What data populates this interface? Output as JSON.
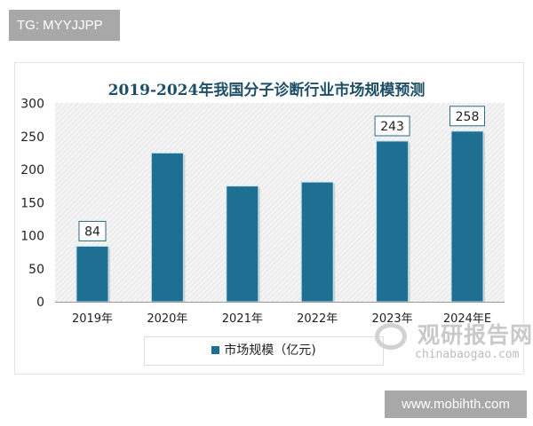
{
  "tag": "TG: MYYJJPP",
  "url_badge": "www.mobihth.com",
  "watermark": {
    "cn": "观研报告网",
    "en": "chinabaogao.com"
  },
  "chart_data": {
    "type": "bar",
    "title": "2019-2024年我国分子诊断行业市场规模预测",
    "categories": [
      "2019年",
      "2020年",
      "2021年",
      "2022年",
      "2023年",
      "2024年E"
    ],
    "series": [
      {
        "name": "市场规模（亿元)",
        "values": [
          84,
          225,
          175,
          181,
          243,
          258
        ],
        "color": "#1e6f92"
      }
    ],
    "data_labels": [
      "84",
      "",
      "",
      "",
      "243",
      "258"
    ],
    "ylim": [
      0,
      300
    ],
    "yticks": [
      0,
      50,
      100,
      150,
      200,
      250,
      300
    ],
    "xlabel": "",
    "ylabel": "",
    "grid": false,
    "background": "diagonal-hatch",
    "legend": "bottom"
  }
}
